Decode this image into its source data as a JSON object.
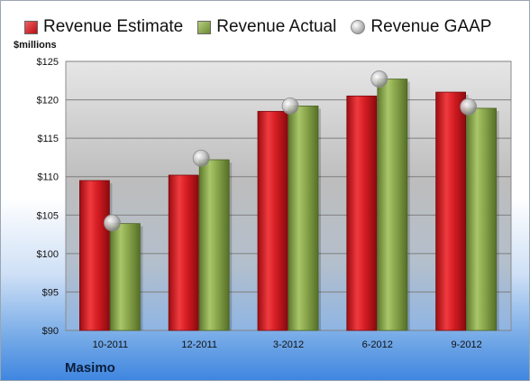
{
  "legend": {
    "estimate": "Revenue Estimate",
    "actual": "Revenue Actual",
    "gaap": "Revenue GAAP"
  },
  "units_label": "$millions",
  "company": "Masimo",
  "colors": {
    "estimate": "#c8161d",
    "actual": "#8aa64c",
    "gaap": "#a9a9a9"
  },
  "chart_data": {
    "type": "bar",
    "categories": [
      "10-2011",
      "12-2011",
      "3-2012",
      "6-2012",
      "9-2012"
    ],
    "series": [
      {
        "name": "Revenue Estimate",
        "values": [
          109.5,
          110.2,
          118.5,
          120.5,
          121.0
        ]
      },
      {
        "name": "Revenue Actual",
        "values": [
          103.9,
          112.2,
          119.2,
          122.7,
          118.9
        ]
      },
      {
        "name": "Revenue GAAP",
        "values": [
          104.0,
          112.4,
          119.2,
          122.7,
          119.1
        ]
      }
    ],
    "ylabel": "$millions",
    "ylim": [
      90,
      125
    ],
    "yticks": [
      "$90",
      "$95",
      "$100",
      "$105",
      "$110",
      "$115",
      "$120",
      "$125"
    ],
    "grid": true,
    "legend_position": "top"
  }
}
